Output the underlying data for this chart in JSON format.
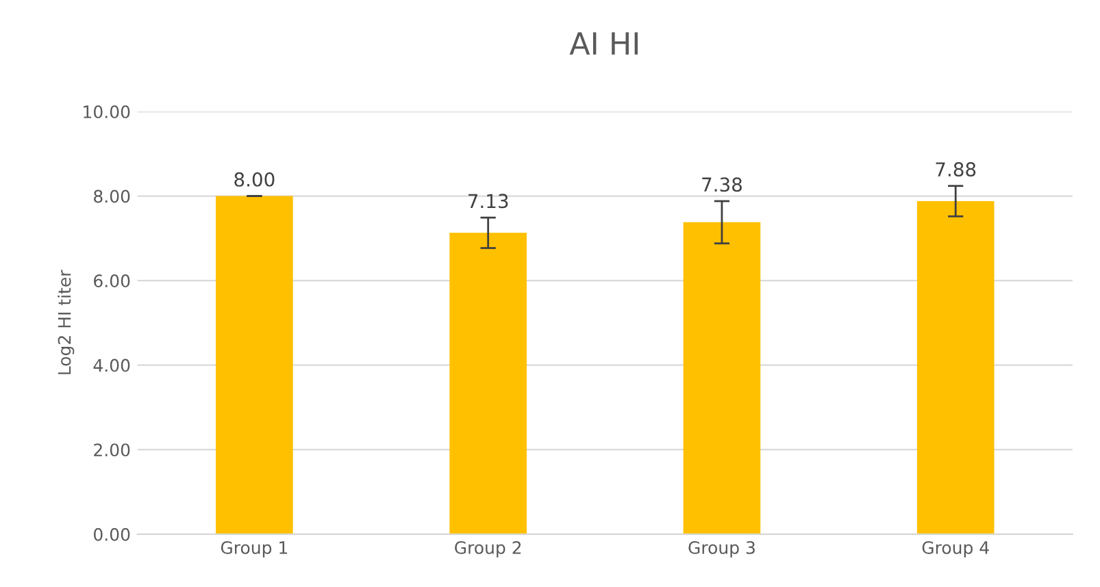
{
  "chart_data": {
    "type": "bar",
    "title": "AI HI",
    "ylabel": "Log2 HI titer",
    "categories": [
      "Group 1",
      "Group 2",
      "Group 3",
      "Group 4"
    ],
    "values": [
      8.0,
      7.13,
      7.38,
      7.88
    ],
    "errors": [
      0,
      0.36,
      0.5,
      0.36
    ],
    "value_labels": [
      "8.00",
      "7.13",
      "7.38",
      "7.88"
    ],
    "color": "#ffc000",
    "ylim": [
      0,
      10
    ],
    "yticks": [
      {
        "value": 0,
        "label": "0.00"
      },
      {
        "value": 2,
        "label": "2.00"
      },
      {
        "value": 4,
        "label": "4.00"
      },
      {
        "value": 6,
        "label": "6.00"
      },
      {
        "value": 8,
        "label": "8.00"
      },
      {
        "value": 10,
        "label": "10.00"
      }
    ],
    "grid": "y"
  }
}
